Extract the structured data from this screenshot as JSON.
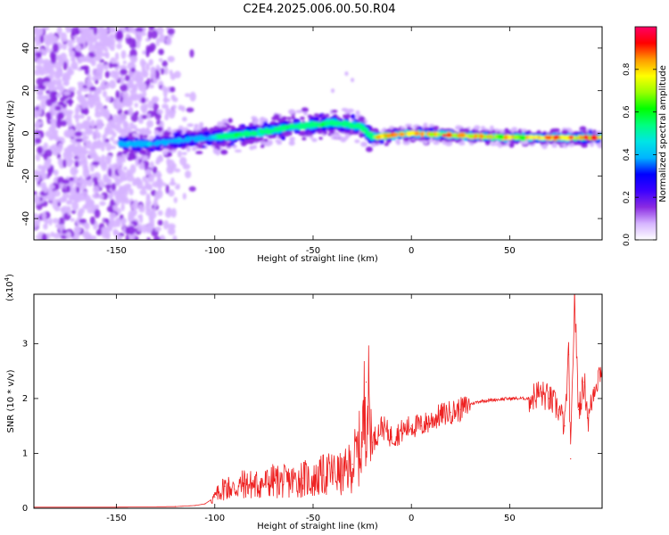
{
  "title": "C2E4.2025.006.00.50.R04",
  "chart_data": [
    {
      "type": "heatmap",
      "xlabel": "Height of straight line (km)",
      "ylabel": "Frequency (Hz)",
      "xlim": [
        -192,
        97
      ],
      "ylim": [
        -50,
        50
      ],
      "xticks": [
        -150,
        -100,
        -50,
        0,
        50
      ],
      "yticks": [
        -40,
        -20,
        0,
        20,
        40
      ],
      "colorbar": {
        "label": "Normalized spectral amplitude",
        "range": [
          0,
          1
        ],
        "ticks": [
          "0.0",
          "0.2",
          "0.4",
          "0.6",
          "0.8"
        ],
        "colors": [
          "#ffffff",
          "#d6b4ff",
          "#8a2be2",
          "#3b00ff",
          "#0000ff",
          "#00b4ff",
          "#00e5e5",
          "#00ff80",
          "#00ff00",
          "#9aff00",
          "#ffff00",
          "#ff9900",
          "#ff0000",
          "#ff0066"
        ]
      },
      "ridge": [
        {
          "x": -145,
          "f": -5
        },
        {
          "x": -130,
          "f": -5
        },
        {
          "x": -115,
          "f": -3
        },
        {
          "x": -100,
          "f": -2
        },
        {
          "x": -80,
          "f": 0
        },
        {
          "x": -60,
          "f": 3
        },
        {
          "x": -40,
          "f": 5
        },
        {
          "x": -25,
          "f": 3
        },
        {
          "x": -20,
          "f": -2
        },
        {
          "x": 0,
          "f": 0
        },
        {
          "x": 50,
          "f": -2
        },
        {
          "x": 95,
          "f": -2
        }
      ],
      "grid": false
    },
    {
      "type": "line",
      "xlabel": "Height of straight line (km)",
      "ylabel": "SNR (10 * v/v)",
      "scale_label": "(x10",
      "scale_exp": "4",
      "scale_close": ")",
      "xlim": [
        -192,
        97
      ],
      "ylim": [
        0,
        3.9
      ],
      "xticks": [
        -150,
        -100,
        -50,
        0,
        50
      ],
      "yticks": [
        0,
        1,
        2,
        3
      ],
      "line_color": "#ee2222",
      "series": [
        {
          "points": [
            [
              -192,
              0.02
            ],
            [
              -150,
              0.02
            ],
            [
              -120,
              0.03
            ],
            [
              -110,
              0.05
            ],
            [
              -105,
              0.08
            ],
            [
              -100,
              0.2
            ],
            [
              -95,
              0.4
            ],
            [
              -90,
              0.35
            ],
            [
              -85,
              0.45
            ],
            [
              -80,
              0.42
            ],
            [
              -75,
              0.45
            ],
            [
              -70,
              0.5
            ],
            [
              -65,
              0.48
            ],
            [
              -60,
              0.5
            ],
            [
              -55,
              0.55
            ],
            [
              -50,
              0.5
            ],
            [
              -45,
              0.6
            ],
            [
              -40,
              0.65
            ],
            [
              -35,
              0.6
            ],
            [
              -30,
              0.8
            ],
            [
              -25,
              1.2
            ],
            [
              -23,
              2.3
            ],
            [
              -20,
              1.2
            ],
            [
              -15,
              1.5
            ],
            [
              -10,
              1.3
            ],
            [
              -5,
              1.4
            ],
            [
              0,
              1.5
            ],
            [
              5,
              1.5
            ],
            [
              10,
              1.6
            ],
            [
              15,
              1.7
            ],
            [
              20,
              1.75
            ],
            [
              25,
              1.8
            ],
            [
              30,
              1.9
            ],
            [
              35,
              1.95
            ],
            [
              40,
              1.97
            ],
            [
              50,
              2.0
            ],
            [
              60,
              2.0
            ],
            [
              65,
              2.1
            ],
            [
              70,
              2.0
            ],
            [
              75,
              1.8
            ],
            [
              78,
              1.5
            ],
            [
              80,
              2.8
            ],
            [
              81,
              0.9
            ],
            [
              83,
              3.9
            ],
            [
              85,
              1.8
            ],
            [
              88,
              2.3
            ],
            [
              90,
              1.6
            ],
            [
              93,
              2.2
            ],
            [
              97,
              2.6
            ]
          ]
        }
      ],
      "grid": false
    }
  ]
}
